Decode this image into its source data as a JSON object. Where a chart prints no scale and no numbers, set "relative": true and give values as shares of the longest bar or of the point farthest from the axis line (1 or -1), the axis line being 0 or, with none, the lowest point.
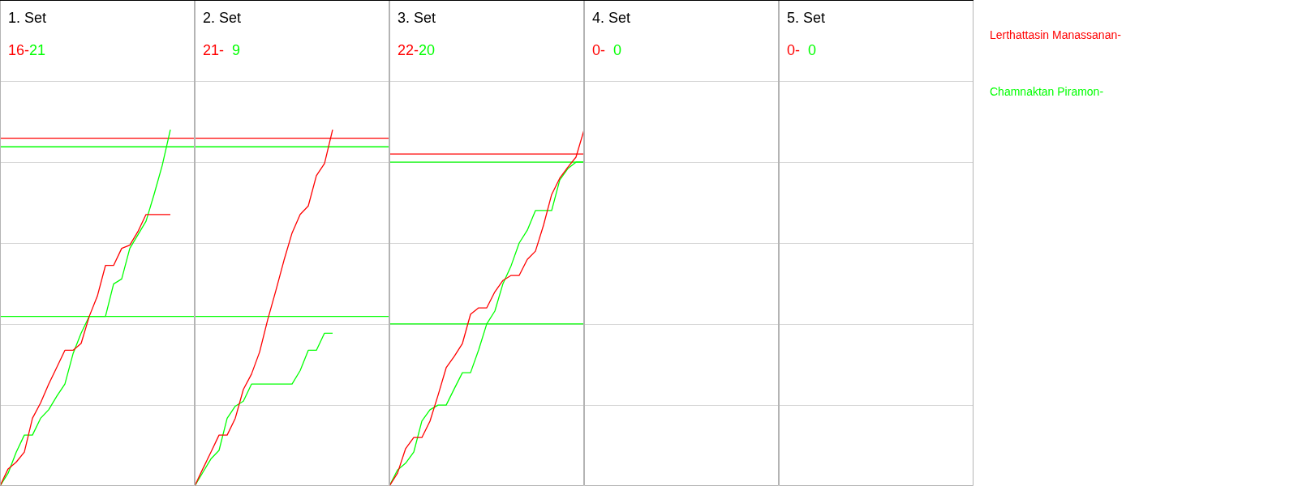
{
  "chart_data": [
    {
      "type": "line",
      "title": "1. Set",
      "annotations": [
        "16-",
        "21"
      ],
      "categories": [
        null,
        null,
        null,
        null,
        null,
        null,
        null,
        null,
        null,
        null,
        null,
        null,
        null,
        null,
        null,
        null,
        null,
        null,
        null,
        null,
        null,
        null,
        null,
        null,
        null
      ],
      "relative": true,
      "ref_lines": [
        {
          "axis": "y",
          "value": 0.976,
          "color": "#ff0000"
        },
        {
          "axis": "y",
          "value": 0.952,
          "color": "#00ff00"
        },
        {
          "axis": "y",
          "value": 0.476,
          "color": "#00ff00"
        }
      ],
      "series": [
        {
          "color": "#ff0000",
          "values": [
            0,
            0.048,
            0.067,
            0.095,
            0.19,
            0.233,
            0.286,
            0.333,
            0.381,
            0.381,
            0.4,
            0.476,
            0.533,
            0.619,
            0.619,
            0.667,
            0.676,
            0.714,
            0.762,
            0.762,
            0.762,
            0.762,
            null,
            null,
            null
          ]
        },
        {
          "color": "#00ff00",
          "values": [
            0,
            0.036,
            0.095,
            0.143,
            0.143,
            0.19,
            0.214,
            0.252,
            0.286,
            0.371,
            0.429,
            0.476,
            0.476,
            0.476,
            0.567,
            0.581,
            0.667,
            0.705,
            0.743,
            0.819,
            0.9,
            1,
            null,
            null,
            null
          ]
        }
      ]
    },
    {
      "type": "line",
      "title": "2. Set",
      "annotations": [
        "21-",
        "9"
      ],
      "categories": [
        null,
        null,
        null,
        null,
        null,
        null,
        null,
        null,
        null,
        null,
        null,
        null,
        null,
        null,
        null,
        null,
        null,
        null,
        null,
        null,
        null,
        null,
        null,
        null,
        null
      ],
      "relative": true,
      "ref_lines": [
        {
          "axis": "y",
          "value": 0.976,
          "color": "#ff0000"
        },
        {
          "axis": "y",
          "value": 0.952,
          "color": "#00ff00"
        },
        {
          "axis": "y",
          "value": 0.476,
          "color": "#00ff00"
        }
      ],
      "series": [
        {
          "color": "#ff0000",
          "values": [
            0,
            0.048,
            0.095,
            0.143,
            0.143,
            0.19,
            0.271,
            0.314,
            0.376,
            0.467,
            0.548,
            0.633,
            0.71,
            0.762,
            0.786,
            0.871,
            0.905,
            1,
            null,
            null,
            null,
            null,
            null,
            null,
            null
          ]
        },
        {
          "color": "#00ff00",
          "values": [
            0,
            0.038,
            0.076,
            0.1,
            0.19,
            0.224,
            0.238,
            0.286,
            0.286,
            0.286,
            0.286,
            0.286,
            0.286,
            0.324,
            0.381,
            0.381,
            0.429,
            0.429,
            null,
            null,
            null,
            null,
            null,
            null,
            null
          ]
        }
      ]
    },
    {
      "type": "line",
      "title": "3. Set",
      "annotations": [
        "22-",
        "20"
      ],
      "categories": [
        null,
        null,
        null,
        null,
        null,
        null,
        null,
        null,
        null,
        null,
        null,
        null,
        null,
        null,
        null,
        null,
        null,
        null,
        null,
        null,
        null,
        null,
        null,
        null,
        null
      ],
      "relative": true,
      "ref_lines": [
        {
          "axis": "y",
          "value": 0.932,
          "color": "#ff0000"
        },
        {
          "axis": "y",
          "value": 0.909,
          "color": "#00ff00"
        },
        {
          "axis": "y",
          "value": 0.455,
          "color": "#00ff00"
        }
      ],
      "series": [
        {
          "color": "#ff0000",
          "values": [
            0,
            0.036,
            0.105,
            0.136,
            0.136,
            0.182,
            0.255,
            0.332,
            0.364,
            0.4,
            0.482,
            0.5,
            0.5,
            0.545,
            0.577,
            0.591,
            0.591,
            0.636,
            0.659,
            0.732,
            0.818,
            0.864,
            0.895,
            0.923,
            1
          ]
        },
        {
          "color": "#00ff00",
          "values": [
            0,
            0.045,
            0.064,
            0.095,
            0.182,
            0.214,
            0.227,
            0.227,
            0.273,
            0.318,
            0.318,
            0.382,
            0.455,
            0.491,
            0.568,
            0.618,
            0.682,
            0.718,
            0.773,
            0.773,
            0.773,
            0.859,
            0.891,
            0.909,
            0.909
          ]
        }
      ]
    },
    {
      "type": "other",
      "title": "4. Set",
      "annotations": [
        "0-",
        "0"
      ],
      "series": [
        {
          "color": "#ff0000"
        },
        {
          "color": "#00ff00"
        }
      ]
    },
    {
      "type": "other",
      "title": "5. Set",
      "annotations": [
        "0-",
        "0"
      ],
      "series": [
        {
          "name": "Lerthattasin Manassanan-",
          "color": "#ff0000"
        },
        {
          "name": "Chamnaktan Piramon-",
          "color": "#00ff00"
        }
      ]
    }
  ]
}
